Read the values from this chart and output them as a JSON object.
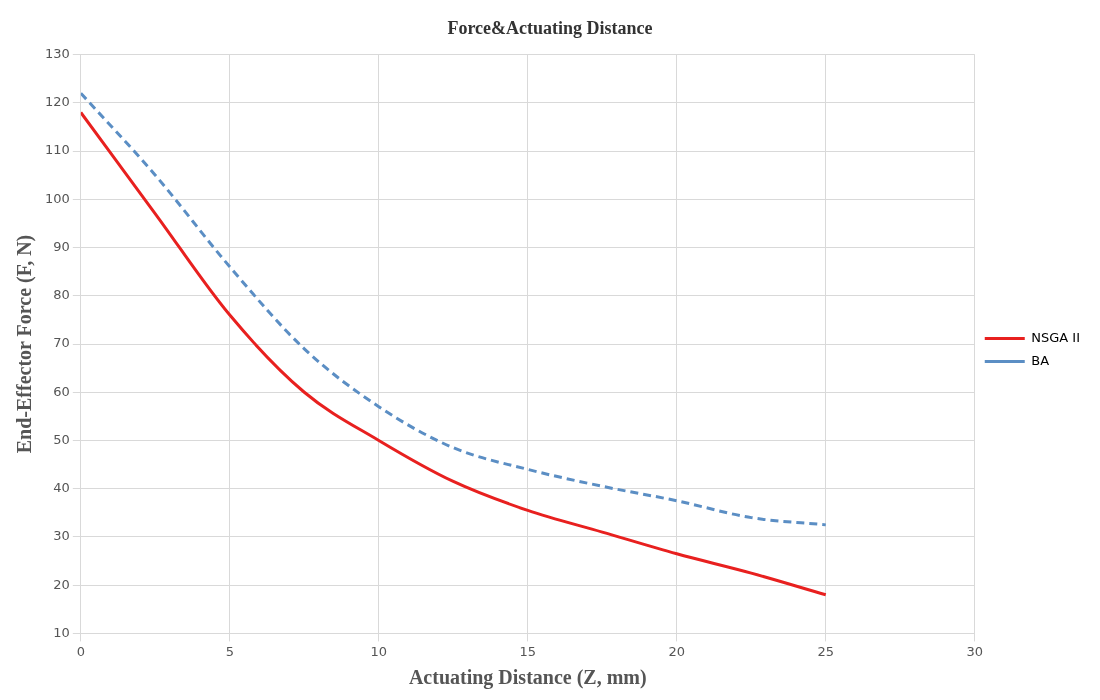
{
  "chart_data": {
    "type": "line",
    "title": "Force&Actuating Distance",
    "xlabel": "Actuating Distance (Z, mm)",
    "ylabel": "End-Effector Force (F, N)",
    "x": [
      0,
      2.5,
      5,
      7.5,
      10,
      12.5,
      15,
      17.5,
      20,
      22.5,
      25
    ],
    "series": [
      {
        "name": "NSGA II",
        "color": "#e8201f",
        "line_style": "solid",
        "values": [
          118,
          97,
          76,
          60,
          50,
          41.5,
          35.5,
          31,
          26.5,
          22.5,
          18
        ]
      },
      {
        "name": "BA",
        "color": "#5b8ec4",
        "line_style": "dashed",
        "values": [
          122,
          105,
          86,
          69,
          57,
          48.5,
          44,
          40.5,
          37.5,
          34,
          32.5
        ]
      }
    ],
    "xlim": [
      0,
      30
    ],
    "xticks": [
      0,
      5,
      10,
      15,
      20,
      25,
      30
    ],
    "ylim": [
      10,
      130
    ],
    "yticks": [
      10,
      20,
      30,
      40,
      50,
      60,
      70,
      80,
      90,
      100,
      110,
      120,
      130
    ],
    "grid": true,
    "legend": "right",
    "marker": "none"
  }
}
